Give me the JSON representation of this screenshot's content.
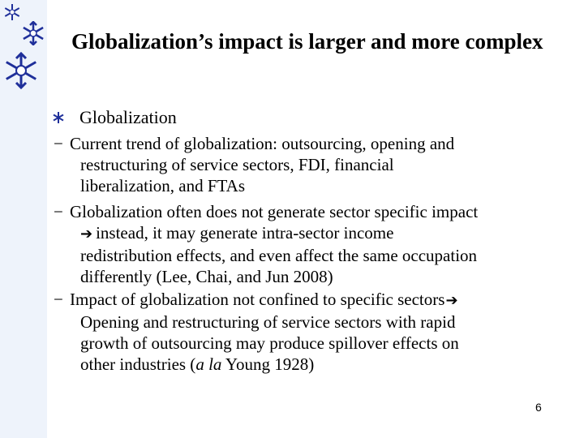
{
  "title": "Globalization’s impact is larger and more complex",
  "bullet": {
    "icon": "asterisk-bullet-icon",
    "text": "Globalization"
  },
  "items": [
    {
      "dash": "−",
      "first": "Current trend of globalization: outsourcing, opening and",
      "rest": [
        "restructuring of service sectors, FDI, financial",
        "liberalization, and FTAs"
      ]
    },
    {
      "dash": "−",
      "first": "Globalization often does not generate sector specific impact",
      "rest_arrow": "instead, it may generate intra-sector income",
      "rest": [
        "redistribution effects, and even affect the same occupation",
        "differently (Lee, Chai, and Jun 2008)"
      ]
    },
    {
      "dash": "−",
      "first": "Impact of globalization not confined to specific sectors",
      "rest": [
        "Opening and restructuring of service sectors with rapid",
        "growth of outsourcing may produce spillover effects on"
      ],
      "last_pre": "other industries (",
      "last_italic": "a la",
      "last_post": " Young 1928)"
    }
  ],
  "arrow_glyph": "➔",
  "page_number": "6",
  "colors": {
    "sidebar": "#eef3fb",
    "snowflake": "#1f2f9a"
  }
}
